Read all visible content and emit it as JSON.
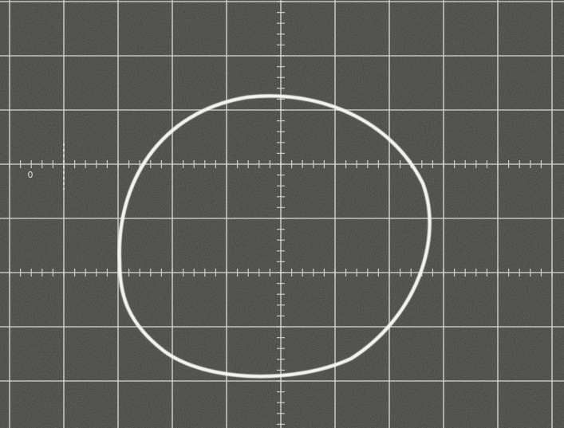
{
  "trace_label": "0"
}
